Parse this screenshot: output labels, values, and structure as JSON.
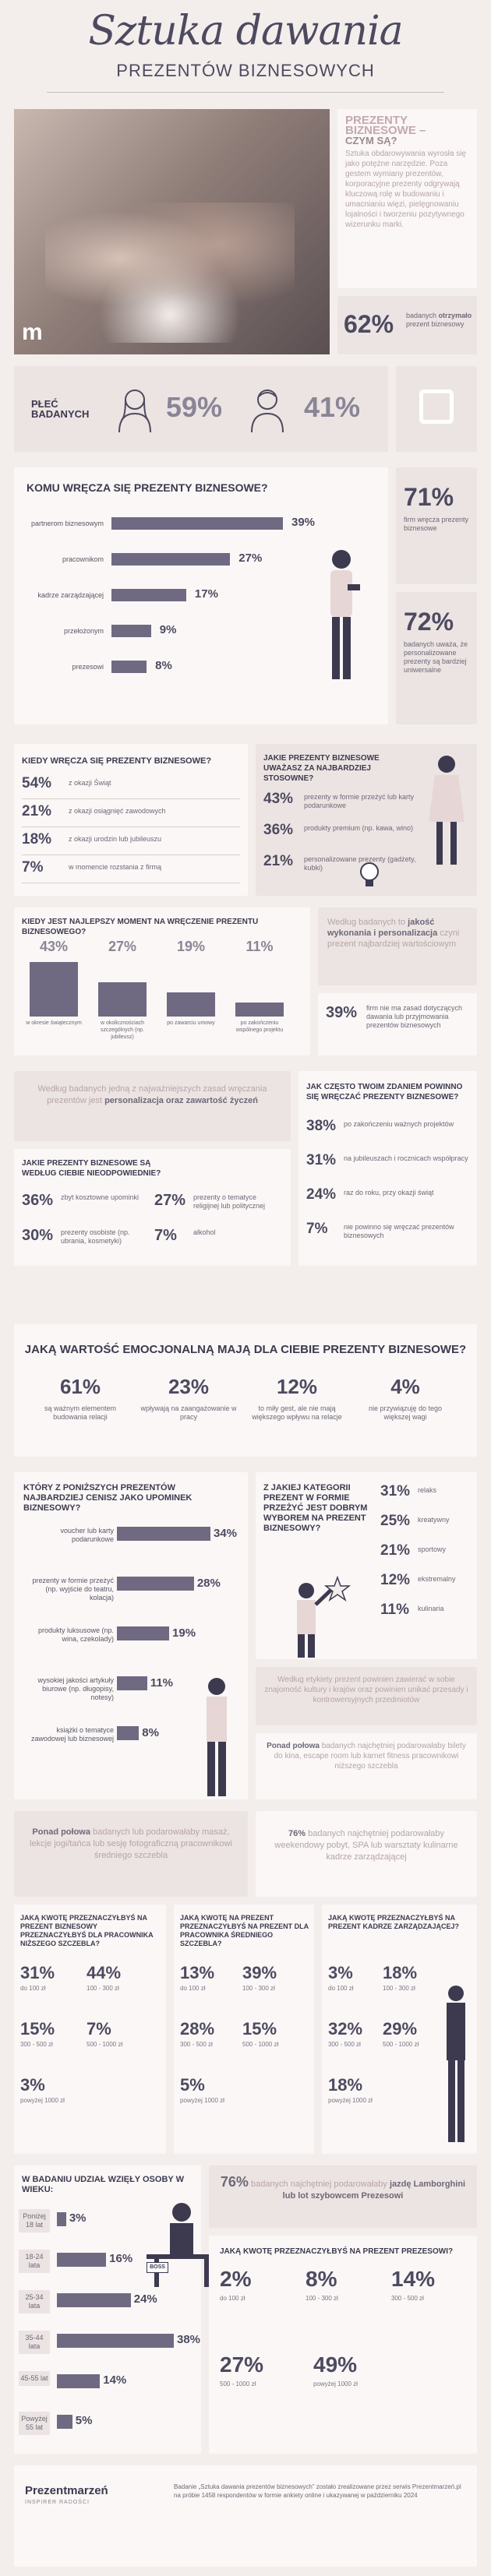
{
  "header": {
    "title": "Sztuka dawania",
    "subtitle": "PREZENTÓW BIZNESOWYCH"
  },
  "intro": {
    "heading": "PREZENTY BIZNESOWE –",
    "heading2": "CZYM SĄ?",
    "text": "Sztuka obdarowywania wyrosła się jako potężne narzędzie. Poza gestem wymiany prezentów, korporacyjne prezenty odgrywają kluczową rolę w budowaniu i umacnianiu więzi, pielęgnowaniu lojalności i tworzeniu pozytywnego wizerunku marki.",
    "stat_value": "62%",
    "stat_text_1": "badanych",
    "stat_text_bold": "otrzymało",
    "stat_text_2": "prezent biznesowy"
  },
  "gender": {
    "label": "PŁEĆ BADANYCH",
    "female": "59%",
    "male": "41%"
  },
  "who_gives": {
    "heading": "KOMU WRĘCZA SIĘ PREZENTY BIZNESOWE?",
    "items": [
      {
        "label": "partnerom biznesowym",
        "value": "39%"
      },
      {
        "label": "pracownikom",
        "value": "27%"
      },
      {
        "label": "kadrze zarządzającej",
        "value": "17%"
      },
      {
        "label": "przełożonym",
        "value": "9%"
      },
      {
        "label": "prezesowi",
        "value": "8%"
      }
    ],
    "stat1_value": "71%",
    "stat1_text": "firm wręcza prezenty biznesowe",
    "stat2_value": "72%",
    "stat2_text": "badanych uważa, że personalizowane prezenty są bardziej uniwersalne"
  },
  "when": {
    "heading": "KIEDY WRĘCZA SIĘ PREZENTY BIZNESOWE?",
    "items": [
      {
        "value": "54%",
        "label": "z okazji Świąt"
      },
      {
        "value": "21%",
        "label": "z okazji osiągnięć zawodowych"
      },
      {
        "value": "18%",
        "label": "z okazji urodzin lub jubileuszu"
      },
      {
        "value": "7%",
        "label": "w momencie rozstania z firmą"
      }
    ]
  },
  "appropriate": {
    "heading": "JAKIE PREZENTY BIZNESOWE UWAŻASZ ZA NAJBARDZIEJ STOSOWNE?",
    "items": [
      {
        "value": "43%",
        "label": "prezenty w formie przeżyć lub karty podarunkowe"
      },
      {
        "value": "36%",
        "label": "produkty premium (np. kawa, wino)"
      },
      {
        "value": "21%",
        "label": "personalizowane prezenty (gadżety, kubki)"
      }
    ]
  },
  "best_moment": {
    "heading": "KIEDY JEST NAJLEPSZY MOMENT NA WRĘCZENIE PREZENTU BIZNESOWEGO?",
    "items": [
      {
        "value": "43%",
        "label": "w okresie świątecznym"
      },
      {
        "value": "27%",
        "label": "w okolicznościach szczególnych (np. jubileusz)"
      },
      {
        "value": "19%",
        "label": "po zawarciu umowy"
      },
      {
        "value": "11%",
        "label": "po zakończeniu wspólnego projektu"
      }
    ]
  },
  "quality": {
    "text1": "Według badanych to",
    "bold": "jakość wykonania i personalizacja",
    "text2": "czyni prezent najbardziej wartościowym",
    "stat_value": "39%",
    "stat_text": "firm nie ma zasad dotyczących dawania lub przyjmowania prezentów biznesowych"
  },
  "principle": {
    "text1": "Według badanych jedną z najważniejszych zasad wręczania prezentów jest",
    "bold": "personalizacja oraz zawartość życzeń"
  },
  "inappropriate": {
    "heading": "JAKIE PREZENTY BIZNESOWE SĄ WEDŁUG CIEBIE NIEODPOWIEDNIE?",
    "items": [
      {
        "value": "36%",
        "label": "zbyt kosztowne upominki"
      },
      {
        "value": "27%",
        "label": "prezenty o tematyce religijnej lub politycznej"
      },
      {
        "value": "30%",
        "label": "prezenty osobiste (np. ubrania, kosmetyki)"
      },
      {
        "value": "7%",
        "label": "alkohol"
      }
    ]
  },
  "frequency": {
    "heading": "JAK CZĘSTO TWOIM ZDANIEM POWINNO SIĘ WRĘCZAĆ PREZENTY BIZNESOWE?",
    "items": [
      {
        "value": "38%",
        "label": "po zakończeniu ważnych projektów"
      },
      {
        "value": "31%",
        "label": "na jubileuszach i rocznicach współpracy"
      },
      {
        "value": "24%",
        "label": "raz do roku, przy okazji świąt"
      },
      {
        "value": "7%",
        "label": "nie powinno się wręczać prezentów biznesowych"
      }
    ]
  },
  "emotional": {
    "heading": "JAKĄ WARTOŚĆ EMOCJONALNĄ MAJĄ DLA CIEBIE PREZENTY BIZNESOWE?",
    "items": [
      {
        "value": "61%",
        "label": "są ważnym elementem budowania relacji"
      },
      {
        "value": "23%",
        "label": "wpływają na zaangażowanie w pracy"
      },
      {
        "value": "12%",
        "label": "to miły gest, ale nie mają większego wpływu na relacje"
      },
      {
        "value": "4%",
        "label": "nie przywiązuję do tego większej wagi"
      }
    ]
  },
  "valued_gifts": {
    "heading": "KTÓRY Z PONIŻSZYCH PREZENTÓW NAJBARDZIEJ CENISZ JAKO UPOMINEK BIZNESOWY?",
    "items": [
      {
        "label": "voucher lub karty podarunkowe",
        "value": "34%"
      },
      {
        "label": "prezenty w formie przeżyć (np. wyjście do teatru, kolacja)",
        "value": "28%"
      },
      {
        "label": "produkty luksusowe (np. wina, czekolady)",
        "value": "19%"
      },
      {
        "label": "wysokiej jakości artykuły biurowe (np. długopisy, notesy)",
        "value": "11%"
      },
      {
        "label": "książki o tematyce zawodowej lub biznesowej",
        "value": "8%"
      }
    ]
  },
  "category": {
    "heading": "Z JAKIEJ KATEGORII PREZENT W FORMIE PRZEŻYĆ JEST DOBRYM WYBOREM NA PREZENT BIZNESOWY?",
    "items": [
      {
        "value": "31%",
        "label": "relaks"
      },
      {
        "value": "25%",
        "label": "kreatywny"
      },
      {
        "value": "21%",
        "label": "sportowy"
      },
      {
        "value": "12%",
        "label": "ekstremalny"
      },
      {
        "value": "11%",
        "label": "kulinaria"
      }
    ]
  },
  "etiquette": {
    "text": "Według etykiety prezent powinien zawierać w sobie znajomość kultury i krajów oraz powinien unikać przesady i kontrowersyjnych przedmiotów"
  },
  "half_box": {
    "bold": "Ponad połowa",
    "text": "badanych najchętniej podarowałaby bilety do kina, escape room lub karnet fitness pracownikowi niższego szczebla"
  },
  "half_box2": {
    "bold": "Ponad połowa",
    "text": "badanych lub podarowałaby masaż, lekcje jogi/tańca lub sesję fotograficzną pracownikowi średniego szczebla"
  },
  "weekend": {
    "bold": "76%",
    "text": "badanych najchętniej podarowałaby weekendowy pobyt, SPA lub warsztaty kulinarne kadrze zarządzającej"
  },
  "budget_low": {
    "heading": "JAKĄ KWOTĘ PRZEZNACZYŁBYŚ NA PREZENT BIZNESOWY PRZEZNACZYŁBYŚ DLA PRACOWNIKA NIŻSZEGO SZCZEBLA?",
    "items": [
      {
        "value": "31%",
        "range": "do 100 zł"
      },
      {
        "value": "44%",
        "range": "100 - 300 zł"
      },
      {
        "value": "15%",
        "range": "300 - 500 zł"
      },
      {
        "value": "7%",
        "range": "500 - 1000 zł"
      },
      {
        "value": "3%",
        "range": "powyżej 1000 zł"
      }
    ]
  },
  "budget_mid": {
    "heading": "JAKĄ KWOTĘ NA PREZENT PRZEZNACZYŁBYŚ NA PREZENT DLA PRACOWNIKA ŚREDNIEGO SZCZEBLA?",
    "items": [
      {
        "value": "13%",
        "range": "do 100 zł"
      },
      {
        "value": "39%",
        "range": "100 - 300 zł"
      },
      {
        "value": "28%",
        "range": "300 - 500 zł"
      },
      {
        "value": "15%",
        "range": "500 - 1000 zł"
      },
      {
        "value": "5%",
        "range": "powyżej 1000 zł"
      }
    ]
  },
  "budget_mgmt": {
    "heading": "JAKĄ KWOTĘ PRZEZNACZYŁBYŚ NA PREZENT KADRZE ZARZĄDZAJĄCEJ?",
    "items": [
      {
        "value": "3%",
        "range": "do 100 zł"
      },
      {
        "value": "18%",
        "range": "100 - 300 zł"
      },
      {
        "value": "32%",
        "range": "300 - 500 zł"
      },
      {
        "value": "29%",
        "range": "500 - 1000 zł"
      },
      {
        "value": "18%",
        "range": "powyżej 1000 zł"
      }
    ]
  },
  "age": {
    "heading": "W BADANIU UDZIAŁ WZIĘŁY OSOBY W WIEKU:",
    "items": [
      {
        "label": "Poniżej 18 lat",
        "value": "3%"
      },
      {
        "label": "18-24 lata",
        "value": "16%"
      },
      {
        "label": "25-34 lata",
        "value": "24%"
      },
      {
        "label": "35-44 lata",
        "value": "38%"
      },
      {
        "label": "45-55 lat",
        "value": "14%"
      },
      {
        "label": "Powyżej 55 lat",
        "value": "5%"
      }
    ],
    "boss_label": "BOSS"
  },
  "president": {
    "bold": "76%",
    "text1": "badanych najchętniej podarowałaby",
    "bold2": "jazdę Lamborghini lub lot szybowcem Prezesowi"
  },
  "budget_president": {
    "heading": "JAKĄ KWOTĘ PRZEZNACZYŁBYŚ NA PREZENT PREZESOWI?",
    "items": [
      {
        "value": "2%",
        "range": "do 100 zł"
      },
      {
        "value": "8%",
        "range": "100 - 300 zł"
      },
      {
        "value": "14%",
        "range": "300 - 500 zł"
      },
      {
        "value": "27%",
        "range": "500 - 1000 zł"
      },
      {
        "value": "49%",
        "range": "powyżej 1000 zł"
      }
    ]
  },
  "footer": {
    "logo": "Prezentmarzeń",
    "logo_sub": "INSPIRER RADOŚCI",
    "note": "Badanie „Sztuka dawania prezentów biznesowych” zostało zrealizowane przez serwis Prezentmarzeń.pl na próbie 1458 respondentów w formie ankiety online i ukazywanej w październiku 2024"
  }
}
